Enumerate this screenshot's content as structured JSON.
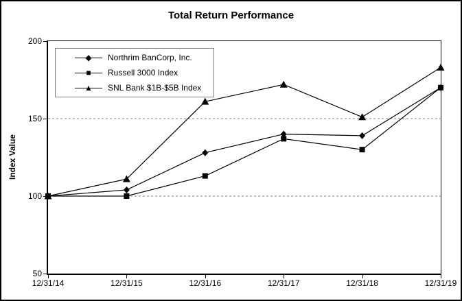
{
  "colors": {
    "series_line": "#000000",
    "gridline": "#808080",
    "legend_border": "#808080",
    "axis": "#000000",
    "background": "#ffffff"
  },
  "chart_data": {
    "type": "line",
    "title": "Total Return Performance",
    "xlabel": "",
    "ylabel": "Index Value",
    "categories": [
      "12/31/14",
      "12/31/15",
      "12/31/16",
      "12/31/17",
      "12/31/18",
      "12/31/19"
    ],
    "ylim": [
      50,
      200
    ],
    "y_ticks": [
      200,
      150,
      100,
      50
    ],
    "gridlines_at": [
      150,
      100
    ],
    "grid": "horizontal dashed at 100 and 150",
    "legend_position": "top-left inside plot area",
    "series": [
      {
        "name": "Northrim BanCorp, Inc.",
        "marker": "diamond",
        "legend_glyph": "◆",
        "color": "#000000",
        "values": [
          100,
          104,
          128,
          140,
          139,
          170
        ]
      },
      {
        "name": "Russell 3000 Index",
        "marker": "square",
        "legend_glyph": "■",
        "color": "#000000",
        "values": [
          100,
          100,
          113,
          137,
          130,
          170
        ]
      },
      {
        "name": "SNL Bank $1B-$5B Index",
        "marker": "triangle",
        "legend_glyph": "▲",
        "color": "#000000",
        "values": [
          100,
          111,
          161,
          172,
          151,
          183
        ]
      }
    ]
  }
}
